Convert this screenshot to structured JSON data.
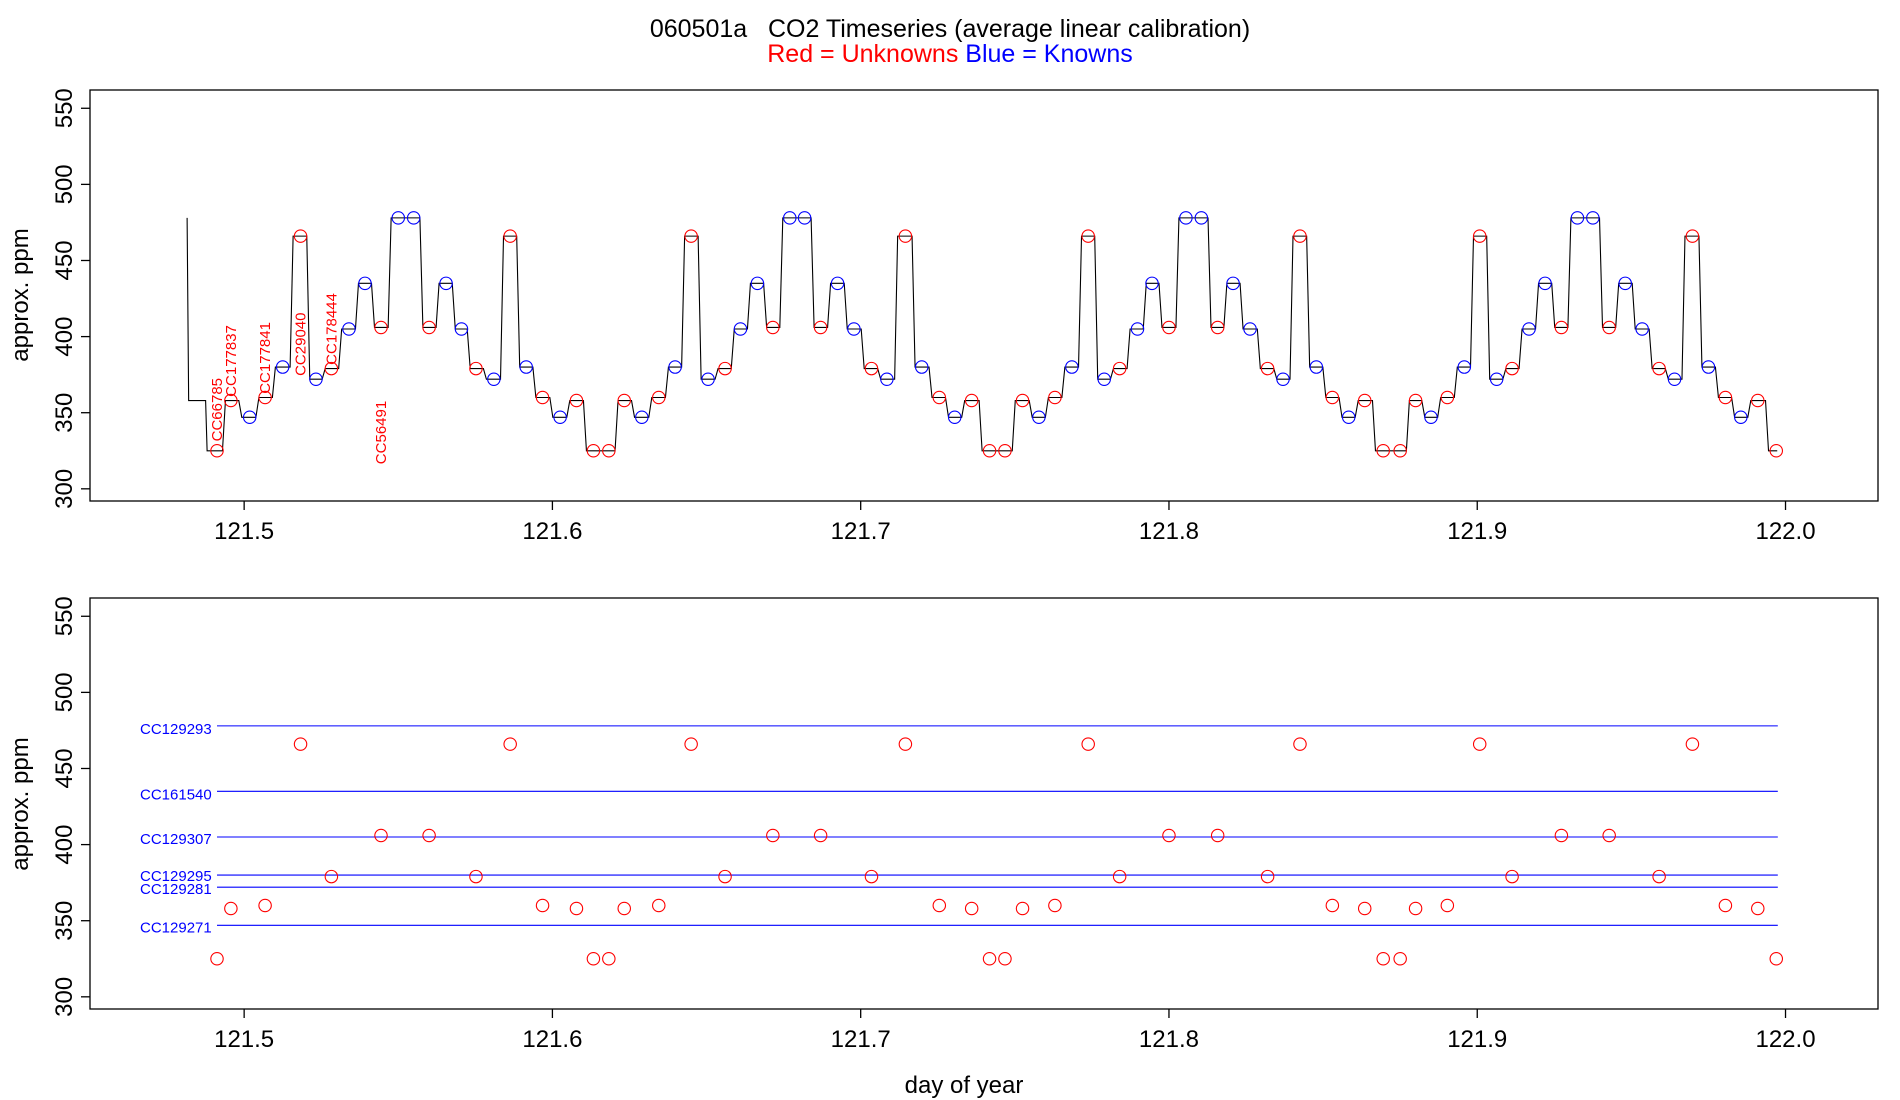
{
  "chart_data": [
    {
      "type": "line",
      "title": "060501a   CO2 Timeseries (average linear calibration)",
      "subtitle": {
        "red": "Red = Unknowns",
        "blue": "Blue = Knowns"
      },
      "xlabel": "",
      "ylabel": "approx. ppm",
      "xlim": [
        121.45,
        122.03
      ],
      "ylim": [
        292,
        562
      ],
      "xticks": [
        121.5,
        121.6,
        121.7,
        121.8,
        121.9,
        122.0
      ],
      "xtick_labels": [
        "121.5",
        "121.6",
        "121.7",
        "121.8",
        "121.9",
        "122.0"
      ],
      "yticks": [
        300,
        350,
        400,
        450,
        500,
        550
      ],
      "ytick_labels": [
        "300",
        "350",
        "400",
        "450",
        "500",
        "550"
      ],
      "colors": {
        "unknown": "#ff0000",
        "known": "#0000ff",
        "trace": "#000000"
      },
      "series": [
        {
          "name": "Unknowns",
          "color": "#ff0000",
          "x": [
            121.4912,
            121.4957,
            121.5068,
            121.5183,
            121.5283,
            121.5444,
            121.56,
            121.5752,
            121.5863,
            121.5968,
            121.6078,
            121.6133,
            121.6183,
            121.6233,
            121.6345,
            121.645,
            121.656,
            121.6715,
            121.687,
            121.7035,
            121.7145,
            121.7255,
            121.736,
            121.7418,
            121.7468,
            121.7525,
            121.763,
            121.7738,
            121.784,
            121.8,
            121.8158,
            121.832,
            121.8425,
            121.853,
            121.8635,
            121.8695,
            121.875,
            121.88,
            121.8903,
            121.9008,
            121.9113,
            121.9273,
            121.9428,
            121.959,
            121.9698,
            121.9805,
            121.991,
            121.997
          ],
          "y": [
            325,
            358,
            360,
            466,
            379,
            406,
            406,
            379,
            466,
            360,
            358,
            325,
            325,
            358,
            360,
            466,
            379,
            406,
            406,
            379,
            466,
            360,
            358,
            325,
            325,
            358,
            360,
            466,
            379,
            406,
            406,
            379,
            466,
            360,
            358,
            325,
            325,
            358,
            360,
            466,
            379,
            406,
            406,
            379,
            466,
            360,
            358,
            325
          ]
        },
        {
          "name": "Knowns",
          "color": "#0000ff",
          "x": [
            121.5018,
            121.5125,
            121.5233,
            121.534,
            121.5392,
            121.55,
            121.555,
            121.5655,
            121.5705,
            121.581,
            121.5915,
            121.6025,
            121.629,
            121.6398,
            121.6505,
            121.661,
            121.6665,
            121.677,
            121.6818,
            121.6925,
            121.6978,
            121.7085,
            121.7198,
            121.7305,
            121.7578,
            121.7685,
            121.779,
            121.7898,
            121.7945,
            121.8055,
            121.8105,
            121.8208,
            121.8263,
            121.837,
            121.8478,
            121.8583,
            121.885,
            121.8958,
            121.9063,
            121.9168,
            121.922,
            121.9325,
            121.9375,
            121.948,
            121.9535,
            121.964,
            121.975,
            121.9855
          ],
          "y": [
            347,
            380,
            372,
            405,
            435,
            478,
            478,
            435,
            405,
            372,
            380,
            347,
            347,
            380,
            372,
            405,
            435,
            478,
            478,
            435,
            405,
            372,
            380,
            347,
            347,
            380,
            372,
            405,
            435,
            478,
            478,
            435,
            405,
            372,
            380,
            347,
            347,
            380,
            372,
            405,
            435,
            478,
            478,
            435,
            405,
            372,
            380,
            347
          ]
        }
      ],
      "annotations": [
        {
          "text": "CC66785",
          "x": 121.4912,
          "y": 352,
          "color": "#ff0000"
        },
        {
          "text": "CC177837",
          "x": 121.4957,
          "y": 384,
          "color": "#ff0000"
        },
        {
          "text": "CC177841",
          "x": 121.5068,
          "y": 386,
          "color": "#ff0000"
        },
        {
          "text": "CC29040",
          "x": 121.5183,
          "y": 395,
          "color": "#ff0000"
        },
        {
          "text": "CC178444",
          "x": 121.5283,
          "y": 405,
          "color": "#ff0000"
        },
        {
          "text": "CC56491",
          "x": 121.5444,
          "y": 337,
          "color": "#ff0000"
        }
      ]
    },
    {
      "type": "scatter",
      "xlabel": "day of year",
      "ylabel": "approx. ppm",
      "xlim": [
        121.45,
        122.03
      ],
      "ylim": [
        292,
        562
      ],
      "xticks": [
        121.5,
        121.6,
        121.7,
        121.8,
        121.9,
        122.0
      ],
      "xtick_labels": [
        "121.5",
        "121.6",
        "121.7",
        "121.8",
        "121.9",
        "122.0"
      ],
      "yticks": [
        300,
        350,
        400,
        450,
        500,
        550
      ],
      "ytick_labels": [
        "300",
        "350",
        "400",
        "450",
        "500",
        "550"
      ],
      "reference_lines": [
        {
          "name": "CC129293",
          "y": 478,
          "color": "#0000ff"
        },
        {
          "name": "CC161540",
          "y": 435,
          "color": "#0000ff"
        },
        {
          "name": "CC129307",
          "y": 405,
          "color": "#0000ff"
        },
        {
          "name": "CC129295",
          "y": 380,
          "color": "#0000ff"
        },
        {
          "name": "CC129281",
          "y": 372,
          "color": "#0000ff"
        },
        {
          "name": "CC129271",
          "y": 347,
          "color": "#0000ff"
        }
      ],
      "series": [
        {
          "name": "Unknowns",
          "color": "#ff0000",
          "x": [
            121.4912,
            121.4957,
            121.5068,
            121.5183,
            121.5283,
            121.5444,
            121.56,
            121.5752,
            121.5863,
            121.5968,
            121.6078,
            121.6133,
            121.6183,
            121.6233,
            121.6345,
            121.645,
            121.656,
            121.6715,
            121.687,
            121.7035,
            121.7145,
            121.7255,
            121.736,
            121.7418,
            121.7468,
            121.7525,
            121.763,
            121.7738,
            121.784,
            121.8,
            121.8158,
            121.832,
            121.8425,
            121.853,
            121.8635,
            121.8695,
            121.875,
            121.88,
            121.8903,
            121.9008,
            121.9113,
            121.9273,
            121.9428,
            121.959,
            121.9698,
            121.9805,
            121.991,
            121.997
          ],
          "y": [
            325,
            358,
            360,
            466,
            379,
            406,
            406,
            379,
            466,
            360,
            358,
            325,
            325,
            358,
            360,
            466,
            379,
            406,
            406,
            379,
            466,
            360,
            358,
            325,
            325,
            358,
            360,
            466,
            379,
            406,
            406,
            379,
            466,
            360,
            358,
            325,
            325,
            358,
            360,
            466,
            379,
            406,
            406,
            379,
            466,
            360,
            358,
            325
          ]
        }
      ]
    }
  ]
}
